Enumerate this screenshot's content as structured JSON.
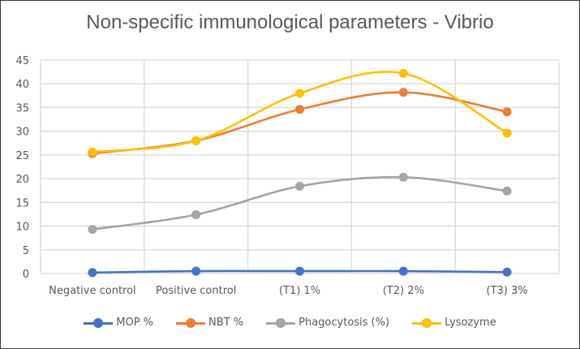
{
  "chart_data": {
    "type": "line",
    "title": "Non-specific immunological parameters - Vibrio",
    "xlabel": "",
    "ylabel": "",
    "categories": [
      "Negative control",
      "Positive control",
      "(T1) 1%",
      "(T2) 2%",
      "(T3) 3%"
    ],
    "ylim": [
      0,
      45
    ],
    "yticks": [
      0,
      5,
      10,
      15,
      20,
      25,
      30,
      35,
      40,
      45
    ],
    "grid": true,
    "smooth": true,
    "legend_position": "bottom",
    "series": [
      {
        "name": "MOP %",
        "color": "#4472C4",
        "values": [
          0.2,
          0.5,
          0.5,
          0.5,
          0.3
        ]
      },
      {
        "name": "NBT %",
        "color": "#ED7D31",
        "values": [
          25.3,
          28.0,
          34.6,
          38.2,
          34.1
        ]
      },
      {
        "name": "Phagocytosis (%)",
        "color": "#A5A5A5",
        "values": [
          9.3,
          12.4,
          18.4,
          20.3,
          17.4
        ]
      },
      {
        "name": "Lysozyme",
        "color": "#FFC000",
        "values": [
          25.6,
          28.0,
          38.0,
          42.2,
          29.6
        ]
      }
    ]
  }
}
